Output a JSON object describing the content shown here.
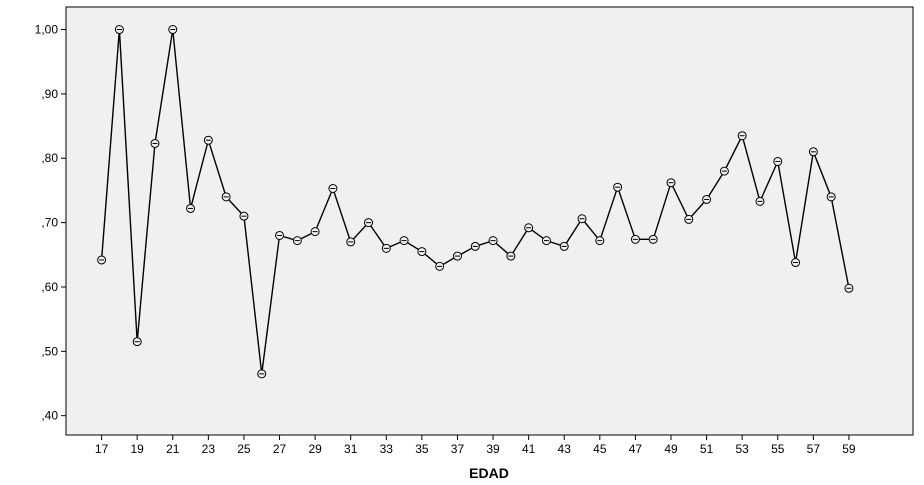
{
  "chart_data": {
    "type": "line",
    "title": "",
    "xlabel": "EDAD",
    "ylabel": "",
    "x": [
      17,
      18,
      19,
      20,
      21,
      22,
      23,
      24,
      25,
      26,
      27,
      28,
      29,
      30,
      31,
      32,
      33,
      34,
      35,
      36,
      37,
      38,
      39,
      40,
      41,
      42,
      43,
      44,
      45,
      46,
      47,
      48,
      49,
      50,
      51,
      52,
      53,
      54,
      55,
      56,
      57,
      58,
      59
    ],
    "values": [
      0.642,
      1.0,
      0.515,
      0.823,
      1.0,
      0.722,
      0.828,
      0.74,
      0.71,
      0.465,
      0.68,
      0.672,
      0.686,
      0.753,
      0.67,
      0.7,
      0.66,
      0.672,
      0.655,
      0.632,
      0.648,
      0.663,
      0.672,
      0.648,
      0.692,
      0.672,
      0.663,
      0.706,
      0.672,
      0.755,
      0.674,
      0.674,
      0.762,
      0.705,
      0.736,
      0.78,
      0.835,
      0.733,
      0.795,
      0.638,
      0.81,
      0.74,
      0.598
    ],
    "x_ticks": [
      "17",
      "19",
      "21",
      "23",
      "25",
      "27",
      "29",
      "31",
      "33",
      "35",
      "37",
      "39",
      "41",
      "43",
      "45",
      "47",
      "49",
      "51",
      "53",
      "55",
      "57",
      "59"
    ],
    "y_ticks": [
      ",40",
      ",50",
      ",60",
      ",70",
      ",80",
      ",90",
      "1,00"
    ],
    "y_tick_values": [
      0.4,
      0.5,
      0.6,
      0.7,
      0.8,
      0.9,
      1.0
    ],
    "xlim": [
      15,
      62.6
    ],
    "ylim": [
      0.37,
      1.035
    ],
    "grid": false,
    "legend": "none",
    "colors": {
      "plot_bg": "#f0f0f0",
      "line": "#000000",
      "marker_fill": "#f0f0f0"
    }
  }
}
